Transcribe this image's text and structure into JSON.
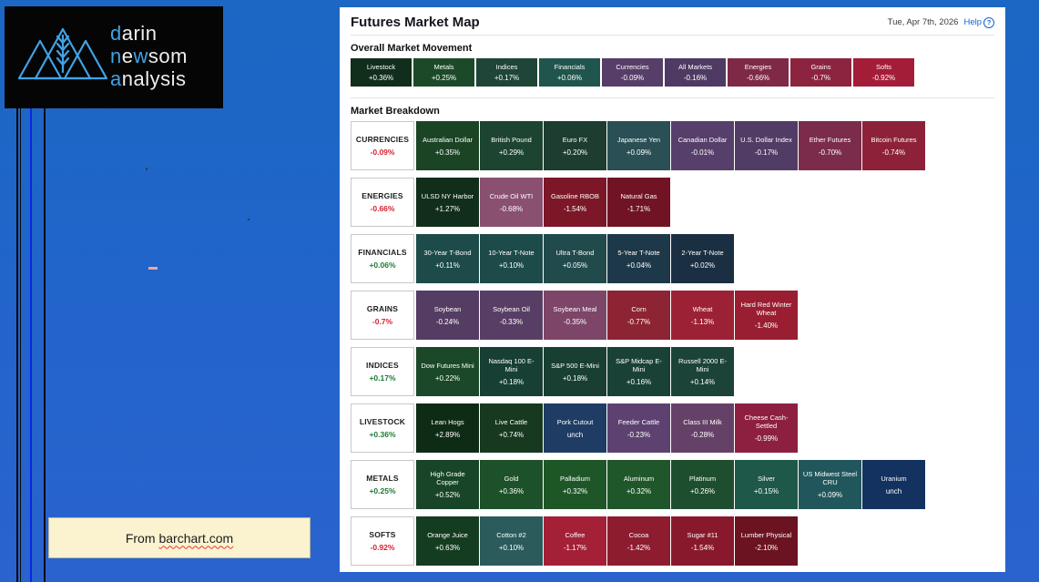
{
  "logo": {
    "icon": "mountains-wheat",
    "lines": [
      {
        "segments": [
          {
            "text": "d",
            "color": "blue"
          },
          {
            "text": "arin",
            "color": "white"
          }
        ]
      },
      {
        "segments": [
          {
            "text": "n",
            "color": "blue"
          },
          {
            "text": "e",
            "color": "white"
          },
          {
            "text": "w",
            "color": "blue"
          },
          {
            "text": "som",
            "color": "white"
          }
        ]
      },
      {
        "segments": [
          {
            "text": "a",
            "color": "blue"
          },
          {
            "text": "nalysis",
            "color": "white"
          }
        ]
      }
    ]
  },
  "panel": {
    "title": "Futures Market Map",
    "date": "Tue, Apr 7th, 2026",
    "help_label": "Help",
    "help_icon": "?",
    "overall": {
      "heading": "Overall Market Movement",
      "tiles": [
        {
          "name": "Livestock",
          "change": "+0.36%",
          "bg": "#112d1b"
        },
        {
          "name": "Metals",
          "change": "+0.25%",
          "bg": "#1c4a28"
        },
        {
          "name": "Indices",
          "change": "+0.17%",
          "bg": "#1e4537"
        },
        {
          "name": "Financials",
          "change": "+0.06%",
          "bg": "#20554d"
        },
        {
          "name": "Currencies",
          "change": "-0.09%",
          "bg": "#573e68"
        },
        {
          "name": "All Markets",
          "change": "-0.16%",
          "bg": "#4e3a62"
        },
        {
          "name": "Energies",
          "change": "-0.66%",
          "bg": "#7e2945"
        },
        {
          "name": "Grains",
          "change": "-0.7%",
          "bg": "#8c2440"
        },
        {
          "name": "Softs",
          "change": "-0.92%",
          "bg": "#a31d39"
        }
      ]
    },
    "breakdown": {
      "heading": "Market Breakdown",
      "rows": [
        {
          "category": "CURRENCIES",
          "change": "-0.09%",
          "direction": "down",
          "tiles": [
            {
              "name": "Australian Dollar",
              "change": "+0.35%",
              "bg": "#1b4425"
            },
            {
              "name": "British Pound",
              "change": "+0.29%",
              "bg": "#1c4430"
            },
            {
              "name": "Euro FX",
              "change": "+0.20%",
              "bg": "#1c3d2f"
            },
            {
              "name": "Japanese Yen",
              "change": "+0.09%",
              "bg": "#2a4f55"
            },
            {
              "name": "Canadian Dollar",
              "change": "-0.01%",
              "bg": "#563f6a"
            },
            {
              "name": "U.S. Dollar Index",
              "change": "-0.17%",
              "bg": "#513c66"
            },
            {
              "name": "Ether Futures",
              "change": "-0.70%",
              "bg": "#7b2c4b"
            },
            {
              "name": "Bitcoin Futures",
              "change": "-0.74%",
              "bg": "#8d2139"
            }
          ]
        },
        {
          "category": "ENERGIES",
          "change": "-0.66%",
          "direction": "down",
          "tiles": [
            {
              "name": "ULSD NY Harbor",
              "change": "+1.27%",
              "bg": "#112e1b"
            },
            {
              "name": "Crude Oil WTI",
              "change": "-0.68%",
              "bg": "#8a5070"
            },
            {
              "name": "Gasoline RBOB",
              "change": "-1.54%",
              "bg": "#7c1728"
            },
            {
              "name": "Natural Gas",
              "change": "-1.71%",
              "bg": "#701425"
            }
          ]
        },
        {
          "category": "FINANCIALS",
          "change": "+0.06%",
          "direction": "up",
          "tiles": [
            {
              "name": "30-Year T-Bond",
              "change": "+0.11%",
              "bg": "#1d4b49"
            },
            {
              "name": "10-Year T-Note",
              "change": "+0.10%",
              "bg": "#1d4b49"
            },
            {
              "name": "Ultra T-Bond",
              "change": "+0.05%",
              "bg": "#204a4b"
            },
            {
              "name": "5-Year T-Note",
              "change": "+0.04%",
              "bg": "#1d3848"
            },
            {
              "name": "2-Year T-Note",
              "change": "+0.02%",
              "bg": "#1a2f41"
            }
          ]
        },
        {
          "category": "GRAINS",
          "change": "-0.7%",
          "direction": "down",
          "tiles": [
            {
              "name": "Soybean",
              "change": "-0.24%",
              "bg": "#543c62"
            },
            {
              "name": "Soybean Oil",
              "change": "-0.33%",
              "bg": "#583e64"
            },
            {
              "name": "Soybean Meal",
              "change": "-0.35%",
              "bg": "#7d4568"
            },
            {
              "name": "Corn",
              "change": "-0.77%",
              "bg": "#8d2433"
            },
            {
              "name": "Wheat",
              "change": "-1.13%",
              "bg": "#9d2134"
            },
            {
              "name": "Hard Red Winter Wheat",
              "change": "-1.40%",
              "bg": "#9a1e31"
            }
          ]
        },
        {
          "category": "INDICES",
          "change": "+0.17%",
          "direction": "up",
          "tiles": [
            {
              "name": "Dow Futures Mini",
              "change": "+0.22%",
              "bg": "#1a4828"
            },
            {
              "name": "Nasdaq 100 E-Mini",
              "change": "+0.18%",
              "bg": "#173f34"
            },
            {
              "name": "S&P 500 E-Mini",
              "change": "+0.18%",
              "bg": "#183f31"
            },
            {
              "name": "S&P Midcap E-Mini",
              "change": "+0.16%",
              "bg": "#1a4136"
            },
            {
              "name": "Russell 2000 E-Mini",
              "change": "+0.14%",
              "bg": "#1c4338"
            }
          ]
        },
        {
          "category": "LIVESTOCK",
          "change": "+0.36%",
          "direction": "up",
          "tiles": [
            {
              "name": "Lean Hogs",
              "change": "+2.89%",
              "bg": "#0e2b16"
            },
            {
              "name": "Live Cattle",
              "change": "+0.74%",
              "bg": "#16391f"
            },
            {
              "name": "Pork Cutout",
              "change": "unch",
              "bg": "#1e3c64"
            },
            {
              "name": "Feeder Cattle",
              "change": "-0.23%",
              "bg": "#5d4271"
            },
            {
              "name": "Class III Milk",
              "change": "-0.28%",
              "bg": "#654168"
            },
            {
              "name": "Cheese Cash-Settled",
              "change": "-0.99%",
              "bg": "#8d2041"
            }
          ]
        },
        {
          "category": "METALS",
          "change": "+0.25%",
          "direction": "up",
          "tiles": [
            {
              "name": "High Grade Copper",
              "change": "+0.52%",
              "bg": "#184527"
            },
            {
              "name": "Gold",
              "change": "+0.36%",
              "bg": "#1d5129"
            },
            {
              "name": "Palladium",
              "change": "+0.32%",
              "bg": "#1f5628"
            },
            {
              "name": "Aluminum",
              "change": "+0.32%",
              "bg": "#20572a"
            },
            {
              "name": "Platinum",
              "change": "+0.26%",
              "bg": "#1d4f2e"
            },
            {
              "name": "Silver",
              "change": "+0.15%",
              "bg": "#1e5848"
            },
            {
              "name": "US Midwest Steel CRU",
              "change": "+0.09%",
              "bg": "#21575c"
            },
            {
              "name": "Uranium",
              "change": "unch",
              "bg": "#133260"
            }
          ]
        },
        {
          "category": "SOFTS",
          "change": "-0.92%",
          "direction": "down",
          "tiles": [
            {
              "name": "Orange Juice",
              "change": "+0.63%",
              "bg": "#143c21"
            },
            {
              "name": "Cotton #2",
              "change": "+0.10%",
              "bg": "#2b5b5b"
            },
            {
              "name": "Coffee",
              "change": "-1.17%",
              "bg": "#a32037"
            },
            {
              "name": "Cocoa",
              "change": "-1.42%",
              "bg": "#8d1c2f"
            },
            {
              "name": "Sugar #11",
              "change": "-1.54%",
              "bg": "#88192c"
            },
            {
              "name": "Lumber Physical",
              "change": "-2.10%",
              "bg": "#6b1321"
            }
          ]
        }
      ]
    }
  },
  "attribution": {
    "prefix": "From",
    "link_text": "barchart.com"
  },
  "colors": {
    "positive_label": "#1b7a34",
    "negative_label": "#d6212f",
    "help_link": "#1464d2",
    "logo_blue": "#3fa2e6",
    "background_top": "#1b67c3",
    "background_bottom": "#2a63ce",
    "source_box_bg": "#fbf2cf",
    "accent_line_blue": "#0726e8"
  }
}
